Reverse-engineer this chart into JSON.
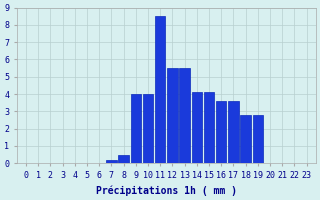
{
  "categories": [
    0,
    1,
    2,
    3,
    4,
    5,
    6,
    7,
    8,
    9,
    10,
    11,
    12,
    13,
    14,
    15,
    16,
    17,
    18,
    19,
    20,
    21,
    22,
    23
  ],
  "values": [
    0,
    0,
    0,
    0,
    0,
    0,
    0,
    0.2,
    0.5,
    4.0,
    4.0,
    8.5,
    5.5,
    5.5,
    4.1,
    4.1,
    3.6,
    3.6,
    2.8,
    2.8,
    0,
    0,
    0,
    0
  ],
  "bar_color": "#1a3adb",
  "bar_edge_color": "#0a2abb",
  "background_color": "#d8f0f0",
  "grid_color": "#b8d0d0",
  "text_color": "#00008b",
  "xlabel": "Précipitations 1h ( mm )",
  "ylim": [
    0,
    9
  ],
  "yticks": [
    0,
    1,
    2,
    3,
    4,
    5,
    6,
    7,
    8,
    9
  ],
  "xticks": [
    0,
    1,
    2,
    3,
    4,
    5,
    6,
    7,
    8,
    9,
    10,
    11,
    12,
    13,
    14,
    15,
    16,
    17,
    18,
    19,
    20,
    21,
    22,
    23
  ],
  "xlabel_fontsize": 7,
  "tick_fontsize": 6.0
}
